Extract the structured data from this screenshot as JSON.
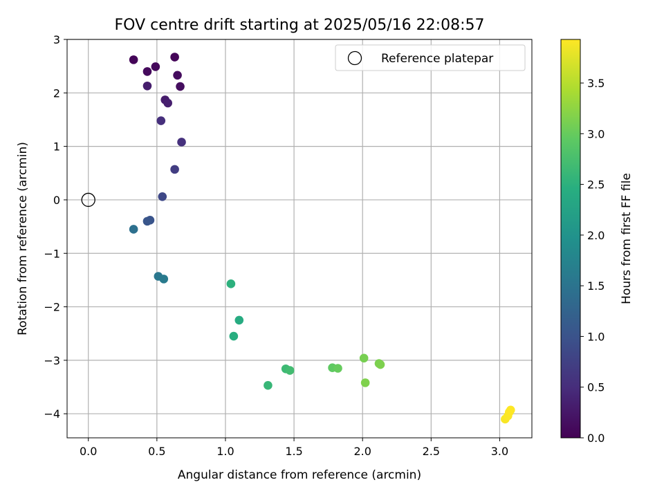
{
  "chart_data": {
    "type": "scatter",
    "title": "FOV centre drift starting at 2025/05/16 22:08:57",
    "xlabel": "Angular distance from reference (arcmin)",
    "ylabel": "Rotation from reference (arcmin)",
    "xlim": [
      -0.155,
      3.235
    ],
    "ylim": [
      -4.45,
      3.0
    ],
    "x_ticks": [
      "0.0",
      "0.5",
      "1.0",
      "1.5",
      "2.0",
      "2.5",
      "3.0"
    ],
    "y_ticks": [
      "−4",
      "−3",
      "−2",
      "−1",
      "0",
      "1",
      "2",
      "3"
    ],
    "grid": true,
    "legend": {
      "position": "upper right",
      "entries": [
        "Reference platepar"
      ]
    },
    "reference_point": {
      "x": 0.0,
      "y": 0.0
    },
    "colorbar": {
      "label": "Hours from first FF file",
      "colormap": "viridis",
      "range": [
        0.0,
        3.93
      ],
      "ticks": [
        "0.0",
        "0.5",
        "1.0",
        "1.5",
        "2.0",
        "2.5",
        "3.0",
        "3.5"
      ]
    },
    "points": [
      {
        "x": 0.33,
        "y": 2.62,
        "c": 0.05
      },
      {
        "x": 0.63,
        "y": 2.67,
        "c": 0.05
      },
      {
        "x": 0.49,
        "y": 2.49,
        "c": 0.08
      },
      {
        "x": 0.43,
        "y": 2.4,
        "c": 0.1
      },
      {
        "x": 0.65,
        "y": 2.33,
        "c": 0.12
      },
      {
        "x": 0.67,
        "y": 2.12,
        "c": 0.14
      },
      {
        "x": 0.43,
        "y": 2.13,
        "c": 0.32
      },
      {
        "x": 0.56,
        "y": 1.87,
        "c": 0.3
      },
      {
        "x": 0.58,
        "y": 1.81,
        "c": 0.33
      },
      {
        "x": 0.53,
        "y": 1.48,
        "c": 0.52
      },
      {
        "x": 0.68,
        "y": 1.08,
        "c": 0.55
      },
      {
        "x": 0.63,
        "y": 0.57,
        "c": 0.7
      },
      {
        "x": 0.54,
        "y": 0.06,
        "c": 0.85
      },
      {
        "x": 0.45,
        "y": -0.38,
        "c": 1.02
      },
      {
        "x": 0.43,
        "y": -0.4,
        "c": 1.05
      },
      {
        "x": 0.33,
        "y": -0.55,
        "c": 1.45
      },
      {
        "x": 0.51,
        "y": -1.43,
        "c": 1.55
      },
      {
        "x": 0.55,
        "y": -1.48,
        "c": 1.6
      },
      {
        "x": 1.04,
        "y": -1.57,
        "c": 2.5
      },
      {
        "x": 1.1,
        "y": -2.25,
        "c": 2.4
      },
      {
        "x": 1.06,
        "y": -2.55,
        "c": 2.45
      },
      {
        "x": 1.31,
        "y": -3.47,
        "c": 2.6
      },
      {
        "x": 1.44,
        "y": -3.16,
        "c": 2.65
      },
      {
        "x": 1.47,
        "y": -3.19,
        "c": 2.7
      },
      {
        "x": 1.78,
        "y": -3.14,
        "c": 2.95
      },
      {
        "x": 1.82,
        "y": -3.15,
        "c": 3.0
      },
      {
        "x": 2.01,
        "y": -2.96,
        "c": 3.1
      },
      {
        "x": 2.02,
        "y": -3.42,
        "c": 3.15
      },
      {
        "x": 2.12,
        "y": -3.06,
        "c": 3.12
      },
      {
        "x": 2.13,
        "y": -3.08,
        "c": 3.14
      },
      {
        "x": 3.04,
        "y": -4.1,
        "c": 3.9
      },
      {
        "x": 3.06,
        "y": -4.04,
        "c": 3.92
      },
      {
        "x": 3.07,
        "y": -3.97,
        "c": 3.93
      },
      {
        "x": 3.08,
        "y": -3.93,
        "c": 3.93
      }
    ]
  }
}
